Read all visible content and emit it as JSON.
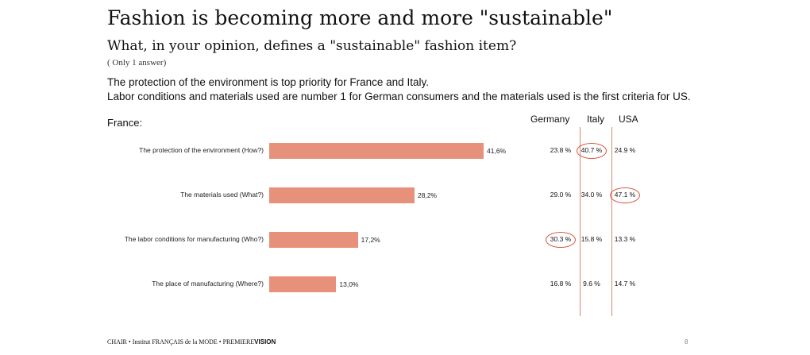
{
  "title": "Fashion is becoming more and more \"sustainable\"",
  "subtitle": "What, in your opinion, defines a \"sustainable\" fashion item?",
  "note": "( Only 1 answer)",
  "text_line1": "The protection of the environment is top priority for France and Italy.",
  "text_line2": "Labor conditions and materials used are number 1 for German consumers and the materials used is the first criteria for US.",
  "france_label": "France:",
  "footer": {
    "part1": "CHAIR • Institut FRANÇAIS de la MODE • PREMIERE",
    "part2": "VISION"
  },
  "page_number": "8",
  "accent_color": "#e8917a",
  "circle_color": "#d9533a",
  "chart_data": {
    "type": "bar",
    "orientation": "horizontal",
    "series": [
      {
        "name": "France",
        "values": [
          41.6,
          28.2,
          17.2,
          13.0
        ]
      }
    ],
    "categories": [
      "The protection of the environment (How?)",
      "The materials used (What?)",
      "The labor conditions for manufacturing (Who?)",
      "The place of manufacturing (Where?)"
    ],
    "value_labels": [
      "41,6%",
      "28,2%",
      "17,2%",
      "13,0%"
    ],
    "xlim": [
      0,
      50
    ],
    "table": {
      "columns": [
        "Germany",
        "Italy",
        "USA"
      ],
      "rows": [
        [
          "23.8 %",
          "40.7 %",
          "24.9 %"
        ],
        [
          "29.0 %",
          "34.0 %",
          "47.1 %"
        ],
        [
          "30.3 %",
          "15.8 %",
          "13.3 %"
        ],
        [
          "16.8 %",
          "9.6 %",
          "14.7 %"
        ]
      ],
      "highlighted": [
        [
          0,
          1
        ],
        [
          1,
          2
        ],
        [
          2,
          0
        ]
      ]
    }
  }
}
